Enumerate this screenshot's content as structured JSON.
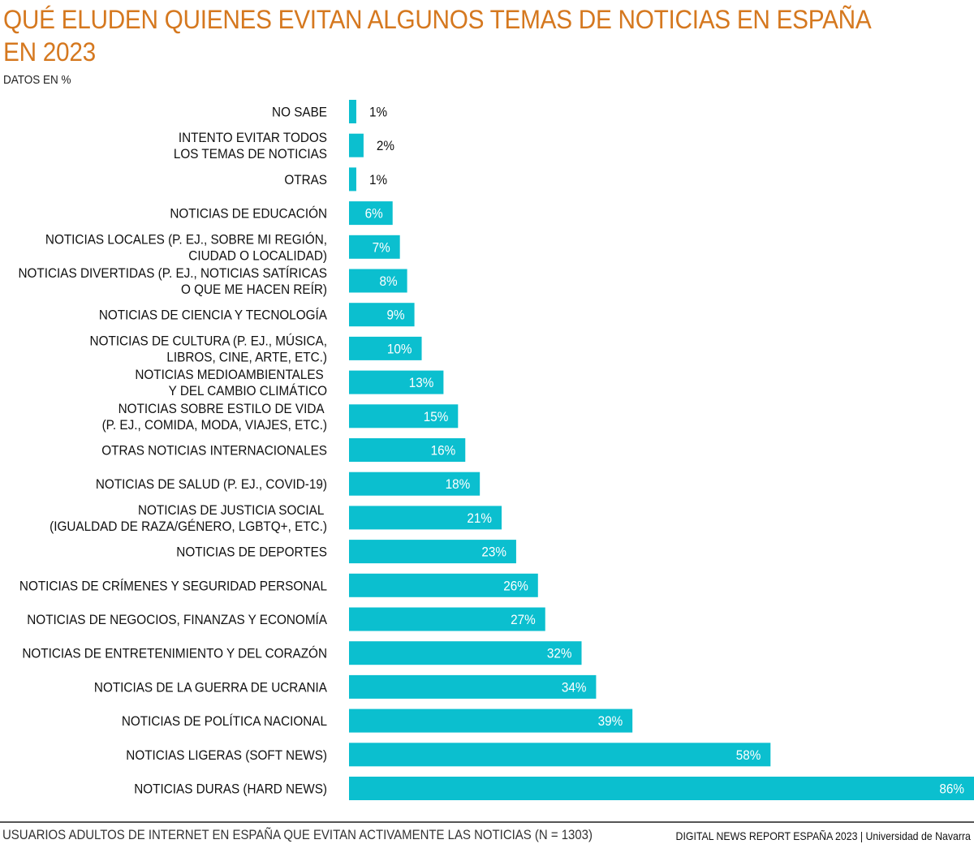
{
  "chart_data": {
    "type": "bar",
    "orientation": "horizontal",
    "title": "QUÉ ELUDEN QUIENES EVITAN ALGUNOS TEMAS DE NOTICIAS EN ESPAÑA EN 2023",
    "subtitle": "DATOS EN %",
    "categories": [
      [
        "NO SABE"
      ],
      [
        "INTENTO EVITAR TODOS",
        "LOS TEMAS DE NOTICIAS"
      ],
      [
        "OTRAS"
      ],
      [
        "NOTICIAS DE EDUCACIÓN"
      ],
      [
        "NOTICIAS LOCALES (P. EJ., SOBRE MI REGIÓN,",
        "CIUDAD O LOCALIDAD)"
      ],
      [
        "NOTICIAS DIVERTIDAS (P. EJ., NOTICIAS SATÍRICAS",
        "O QUE ME HACEN REÍR)"
      ],
      [
        "NOTICIAS DE CIENCIA Y TECNOLOGÍA"
      ],
      [
        "NOTICIAS DE CULTURA (P. EJ., MÚSICA,",
        "LIBROS, CINE, ARTE, ETC.)"
      ],
      [
        "NOTICIAS MEDIOAMBIENTALES ",
        "Y DEL CAMBIO CLIMÁTICO"
      ],
      [
        "NOTICIAS SOBRE ESTILO DE VIDA ",
        "(P. EJ., COMIDA, MODA, VIAJES, ETC.)"
      ],
      [
        "OTRAS NOTICIAS INTERNACIONALES"
      ],
      [
        "NOTICIAS DE SALUD (P. EJ., COVID-19)"
      ],
      [
        "NOTICIAS DE JUSTICIA SOCIAL ",
        "(IGUALDAD DE RAZA/GÉNERO, LGBTQ+, ETC.)"
      ],
      [
        "NOTICIAS DE DEPORTES"
      ],
      [
        "NOTICIAS DE CRÍMENES Y SEGURIDAD PERSONAL"
      ],
      [
        "NOTICIAS DE NEGOCIOS, FINANZAS Y ECONOMÍA"
      ],
      [
        "NOTICIAS DE ENTRETENIMIENTO Y DEL CORAZÓN"
      ],
      [
        "NOTICIAS DE LA GUERRA DE UCRANIA"
      ],
      [
        "NOTICIAS DE POLÍTICA NACIONAL"
      ],
      [
        "NOTICIAS LIGERAS (SOFT NEWS)"
      ],
      [
        "NOTICIAS DURAS (HARD NEWS)"
      ]
    ],
    "values": [
      1,
      2,
      1,
      6,
      7,
      8,
      9,
      10,
      13,
      15,
      16,
      18,
      21,
      23,
      26,
      27,
      32,
      34,
      39,
      58,
      86
    ],
    "value_labels": [
      "1%",
      "2%",
      "1%",
      "6%",
      "7%",
      "8%",
      "9%",
      "10%",
      "13%",
      "15%",
      "16%",
      "18%",
      "21%",
      "23%",
      "26%",
      "27%",
      "32%",
      "34%",
      "39%",
      "58%",
      "86%"
    ],
    "xlim": [
      0,
      86
    ],
    "xlabel": "",
    "ylabel": "",
    "grid": false,
    "legend": "none",
    "bar_color": "#0bbfcf"
  },
  "header": {
    "title": "QUÉ ELUDEN QUIENES EVITAN ALGUNOS TEMAS DE NOTICIAS EN ESPAÑA EN 2023",
    "subtitle": "DATOS EN %"
  },
  "footer": {
    "note": "USUARIOS ADULTOS DE INTERNET EN ESPAÑA QUE EVITAN ACTIVAMENTE LAS NOTICIAS (N = 1303)",
    "source": "DIGITAL NEWS REPORT ESPAÑA 2023 | Universidad de Navarra"
  },
  "colors": {
    "title": "#d5781f",
    "bar": "#0bbfcf",
    "label_inside": "#ffffff",
    "label_outside": "#111111"
  }
}
